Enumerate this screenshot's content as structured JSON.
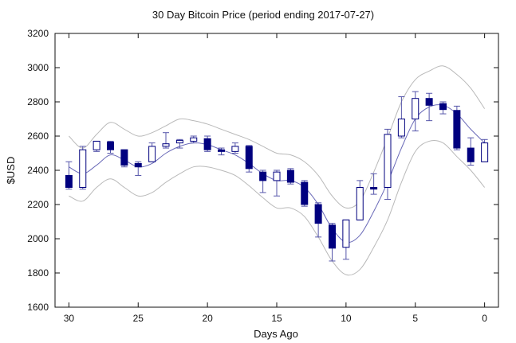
{
  "chart_data": {
    "type": "candlestick",
    "title": "30 Day Bitcoin Price (period ending 2017-07-27)",
    "xlabel": "Days Ago",
    "ylabel": "$USD",
    "xlim": [
      31,
      -1
    ],
    "ylim": [
      1600,
      3200
    ],
    "x_reversed": true,
    "x_ticks": [
      30,
      25,
      20,
      15,
      10,
      5,
      0
    ],
    "y_ticks": [
      1600,
      1800,
      2000,
      2200,
      2400,
      2600,
      2800,
      3000,
      3200
    ],
    "grid": false,
    "legend": "none",
    "colors": {
      "down_fill": "#00007f",
      "up_fill": "#ffffff",
      "candle_stroke": "#00007f",
      "wick": "#5555aa",
      "mean_line": "#6a6ab8",
      "band_line": "#b9b9b9",
      "axis": "#111111"
    },
    "candles": [
      {
        "day": 30,
        "open": 2370,
        "close": 2300,
        "high": 2450,
        "low": 2290
      },
      {
        "day": 29,
        "open": 2300,
        "close": 2520,
        "high": 2540,
        "low": 2290
      },
      {
        "day": 28,
        "open": 2520,
        "close": 2570,
        "high": 2570,
        "low": 2510
      },
      {
        "day": 27,
        "open": 2565,
        "close": 2520,
        "high": 2570,
        "low": 2500
      },
      {
        "day": 26,
        "open": 2520,
        "close": 2430,
        "high": 2520,
        "low": 2420
      },
      {
        "day": 25,
        "open": 2440,
        "close": 2420,
        "high": 2450,
        "low": 2370
      },
      {
        "day": 24,
        "open": 2450,
        "close": 2540,
        "high": 2560,
        "low": 2450
      },
      {
        "day": 23,
        "open": 2540,
        "close": 2555,
        "high": 2620,
        "low": 2530
      },
      {
        "day": 22,
        "open": 2560,
        "close": 2575,
        "high": 2580,
        "low": 2530
      },
      {
        "day": 21,
        "open": 2570,
        "close": 2590,
        "high": 2600,
        "low": 2560
      },
      {
        "day": 20,
        "open": 2585,
        "close": 2520,
        "high": 2600,
        "low": 2510
      },
      {
        "day": 19,
        "open": 2520,
        "close": 2510,
        "high": 2530,
        "low": 2490
      },
      {
        "day": 18,
        "open": 2510,
        "close": 2540,
        "high": 2560,
        "low": 2500
      },
      {
        "day": 17,
        "open": 2540,
        "close": 2410,
        "high": 2545,
        "low": 2390
      },
      {
        "day": 16,
        "open": 2390,
        "close": 2340,
        "high": 2400,
        "low": 2270
      },
      {
        "day": 15,
        "open": 2340,
        "close": 2390,
        "high": 2400,
        "low": 2250
      },
      {
        "day": 14,
        "open": 2400,
        "close": 2330,
        "high": 2410,
        "low": 2320
      },
      {
        "day": 13,
        "open": 2330,
        "close": 2200,
        "high": 2340,
        "low": 2190
      },
      {
        "day": 12,
        "open": 2200,
        "close": 2090,
        "high": 2210,
        "low": 2010
      },
      {
        "day": 11,
        "open": 2080,
        "close": 1945,
        "high": 2090,
        "low": 1870
      },
      {
        "day": 10,
        "open": 1950,
        "close": 2110,
        "high": 2110,
        "low": 1880
      },
      {
        "day": 9,
        "open": 2110,
        "close": 2300,
        "high": 2340,
        "low": 2110
      },
      {
        "day": 8,
        "open": 2300,
        "close": 2290,
        "high": 2380,
        "low": 2260
      },
      {
        "day": 7,
        "open": 2300,
        "close": 2610,
        "high": 2640,
        "low": 2230
      },
      {
        "day": 6,
        "open": 2600,
        "close": 2700,
        "high": 2830,
        "low": 2590
      },
      {
        "day": 5,
        "open": 2700,
        "close": 2820,
        "high": 2860,
        "low": 2630
      },
      {
        "day": 4,
        "open": 2820,
        "close": 2780,
        "high": 2850,
        "low": 2690
      },
      {
        "day": 3,
        "open": 2790,
        "close": 2755,
        "high": 2800,
        "low": 2730
      },
      {
        "day": 2,
        "open": 2750,
        "close": 2530,
        "high": 2775,
        "low": 2520
      },
      {
        "day": 1,
        "open": 2530,
        "close": 2450,
        "high": 2590,
        "low": 2430
      },
      {
        "day": 0,
        "open": 2450,
        "close": 2560,
        "high": 2580,
        "low": 2450
      }
    ],
    "moving_average": {
      "x": [
        30,
        29,
        28,
        27,
        26,
        25,
        24,
        23,
        22,
        21,
        20,
        19,
        18,
        17,
        16,
        15,
        14,
        13,
        12,
        11,
        10,
        9,
        8,
        7,
        6,
        5,
        4,
        3,
        2,
        1,
        0
      ],
      "y": [
        2420,
        2380,
        2430,
        2490,
        2460,
        2420,
        2440,
        2500,
        2540,
        2560,
        2550,
        2520,
        2490,
        2440,
        2380,
        2340,
        2340,
        2300,
        2200,
        2060,
        1980,
        2020,
        2160,
        2330,
        2530,
        2700,
        2770,
        2780,
        2730,
        2640,
        2560
      ]
    },
    "upper_band": {
      "x": [
        30,
        29,
        28,
        27,
        26,
        25,
        24,
        23,
        22,
        21,
        20,
        19,
        18,
        17,
        16,
        15,
        14,
        13,
        12,
        11,
        10,
        9,
        8,
        7,
        6,
        5,
        4,
        3,
        2,
        1,
        0
      ],
      "y": [
        2600,
        2530,
        2610,
        2680,
        2640,
        2600,
        2620,
        2660,
        2700,
        2690,
        2670,
        2640,
        2610,
        2580,
        2540,
        2500,
        2490,
        2450,
        2370,
        2250,
        2180,
        2220,
        2390,
        2590,
        2800,
        2930,
        2980,
        3010,
        2960,
        2880,
        2760
      ]
    },
    "lower_band": {
      "x": [
        30,
        29,
        28,
        27,
        26,
        25,
        24,
        23,
        22,
        21,
        20,
        19,
        18,
        17,
        16,
        15,
        14,
        13,
        12,
        11,
        10,
        9,
        8,
        7,
        6,
        5,
        4,
        3,
        2,
        1,
        0
      ],
      "y": [
        2250,
        2220,
        2300,
        2350,
        2300,
        2250,
        2270,
        2330,
        2380,
        2420,
        2420,
        2400,
        2370,
        2310,
        2240,
        2180,
        2180,
        2130,
        2010,
        1870,
        1790,
        1820,
        1950,
        2110,
        2330,
        2510,
        2570,
        2560,
        2480,
        2400,
        2300
      ]
    }
  }
}
